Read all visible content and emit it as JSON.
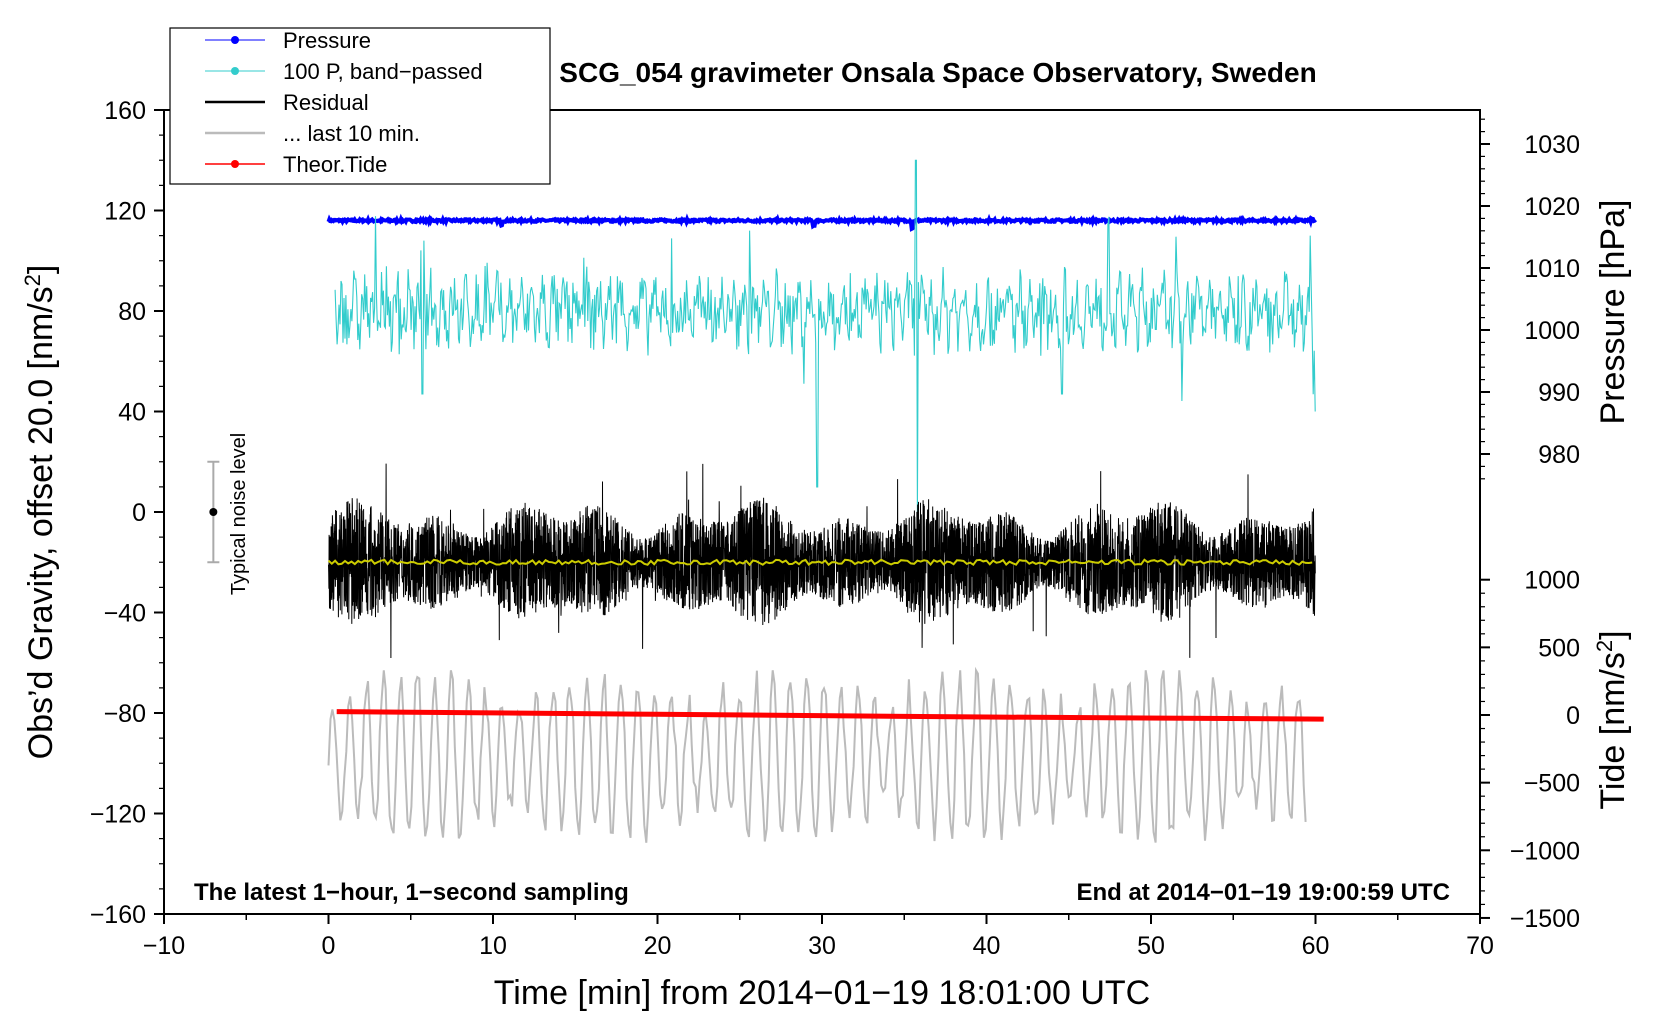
{
  "chart_data": {
    "type": "line",
    "title": "SCG_054 gravimeter Onsala Space Observatory, Sweden",
    "xlabel": "Time [min] from 2014−01−19 18:01:00 UTC",
    "ylabel_left_main": "Obs’d Gravity, offset 20.0 [nm/s",
    "ylabel_left_sup": "2",
    "ylabel_left_end": "]",
    "ylabel_right_pressure": "Pressure [hPa]",
    "ylabel_right_tide_main": "Tide [nm/s",
    "ylabel_right_tide_sup": "2",
    "ylabel_right_tide_end": "]",
    "xlim": [
      -10,
      70
    ],
    "ylim_left": [
      -160,
      160
    ],
    "pressure_axis_range": [
      972,
      1036
    ],
    "tide_axis_range": [
      -1500,
      1500
    ],
    "x_ticks": [
      "−10",
      "0",
      "10",
      "20",
      "30",
      "40",
      "50",
      "60",
      "70"
    ],
    "x_tick_values": [
      -10,
      0,
      10,
      20,
      30,
      40,
      50,
      60,
      70
    ],
    "y_left_ticks": [
      "160",
      "120",
      "80",
      "40",
      "0",
      "−40",
      "−80",
      "−120",
      "−160"
    ],
    "y_left_tick_values": [
      160,
      120,
      80,
      40,
      0,
      -40,
      -80,
      -120,
      -160
    ],
    "y_pressure_ticks": [
      "1030",
      "1020",
      "1010",
      "1000",
      "990",
      "980"
    ],
    "y_pressure_tick_values": [
      1030,
      1020,
      1010,
      1000,
      990,
      980
    ],
    "y_tide_ticks": [
      "1000",
      "500",
      "0",
      "−500",
      "−1000",
      "−1500"
    ],
    "y_tide_tick_values": [
      1000,
      500,
      0,
      -500,
      -1000,
      -1500
    ],
    "legend": [
      {
        "label": "Pressure",
        "color": "#0000ff",
        "marker": true
      },
      {
        "label": "100 P, band−passed",
        "color": "#33cccc",
        "marker": true
      },
      {
        "label": "Residual",
        "color": "#000000",
        "marker": false
      },
      {
        "label": "... last 10 min.",
        "color": "#bbbbbb",
        "marker": false
      },
      {
        "label": "Theor.Tide",
        "color": "#ff0000",
        "marker": true
      }
    ],
    "noise_label": "Typical noise level",
    "noise_bar": {
      "x": -7,
      "center": 0,
      "half_range": 20
    },
    "note_left": "The latest 1−hour, 1−second sampling",
    "note_right": "End at 2014−01−19 19:00:59 UTC",
    "series": [
      {
        "name": "Pressure",
        "axis": "left",
        "color": "#0000ff",
        "x_range": [
          0,
          60
        ],
        "level": 116,
        "noise": 0.5,
        "spikes": [
          [
            10.5,
            -1.5
          ],
          [
            29.5,
            -2
          ],
          [
            35.5,
            -3
          ],
          [
            59.8,
            0.5
          ]
        ]
      },
      {
        "name": "100 P, band−passed",
        "axis": "left",
        "color": "#33cccc",
        "x_range": [
          0,
          60
        ],
        "level": 80,
        "amplitude": 12,
        "spikes": [
          [
            5.7,
            -33
          ],
          [
            5.8,
            28
          ],
          [
            25.6,
            32
          ],
          [
            29.7,
            -70
          ],
          [
            35.7,
            60
          ],
          [
            35.8,
            -80
          ],
          [
            44.6,
            -33
          ],
          [
            59.7,
            30
          ],
          [
            60,
            -40
          ]
        ]
      },
      {
        "name": "Residual",
        "axis": "left",
        "color": "#000000",
        "x_range": [
          0,
          60
        ],
        "level": -20,
        "amplitude": 18,
        "min": -70,
        "max": 33
      },
      {
        "name": "Residual smoothed",
        "axis": "left",
        "color": "#cccc00",
        "x_range": [
          0,
          60
        ],
        "level": -20,
        "amplitude": 1
      },
      {
        "name": "... last 10 min.",
        "axis": "left",
        "color": "#bbbbbb",
        "x_range": [
          0,
          59.5
        ],
        "level": -97,
        "amplitude": 27,
        "min": -145,
        "max": -63
      },
      {
        "name": "Theor.Tide",
        "axis": "tide",
        "color": "#ff0000",
        "x": [
          0.5,
          20,
          40,
          60.5
        ],
        "values": [
          25,
          5,
          -15,
          -30
        ]
      }
    ]
  }
}
